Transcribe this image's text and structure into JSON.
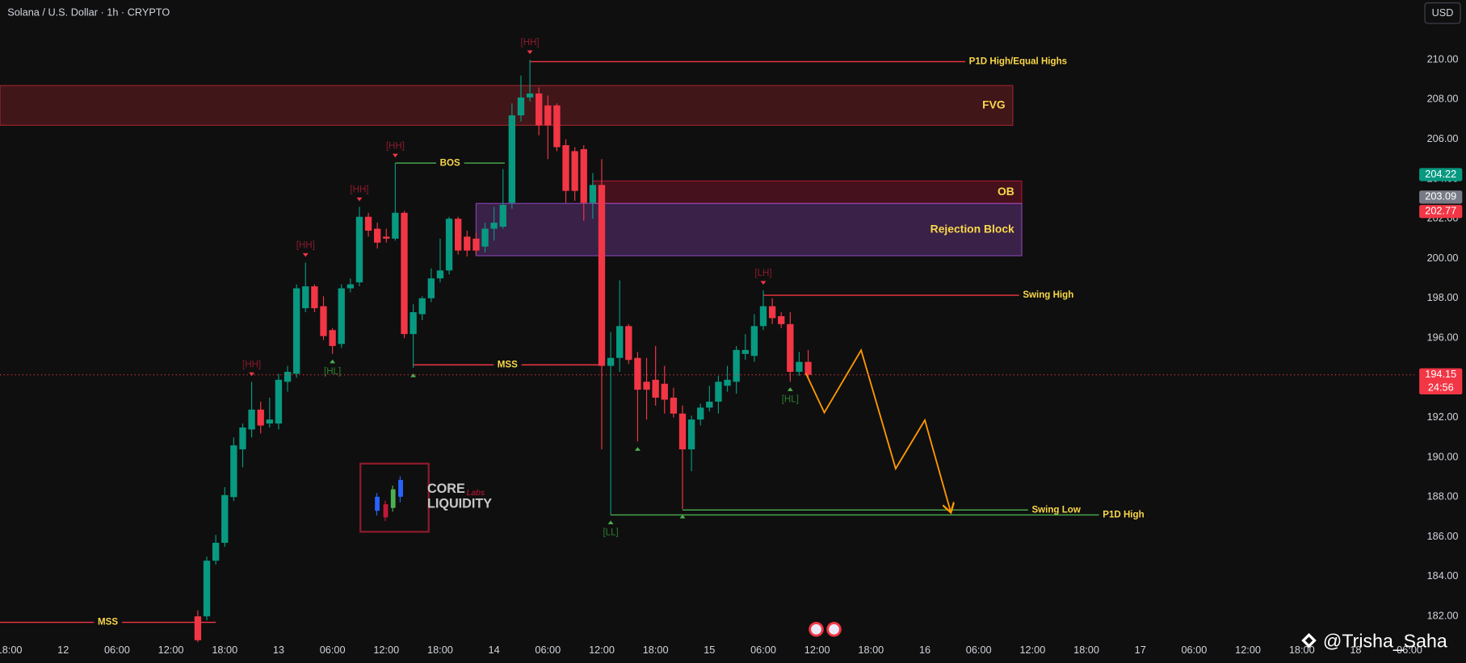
{
  "header": {
    "title": "Solana / U.S. Dollar · 1h · CRYPTO",
    "currency_button": "USD"
  },
  "watermark": {
    "brand_top": "CORE",
    "brand_script": "Labs",
    "brand_bottom": "LIQUIDITY",
    "credit": "@Trisha_Saha"
  },
  "chart_data": {
    "type": "candlestick",
    "up_color": "#089981",
    "down_color": "#f23645",
    "grid": false,
    "xlim": [
      -1.04,
      156.77
    ],
    "ylim": [
      180.69,
      213.0
    ],
    "xticks": [
      {
        "value": 0,
        "label": "18:00"
      },
      {
        "value": 6,
        "label": "12"
      },
      {
        "value": 12,
        "label": "06:00"
      },
      {
        "value": 18,
        "label": "12:00"
      },
      {
        "value": 24,
        "label": "18:00"
      },
      {
        "value": 30,
        "label": "13"
      },
      {
        "value": 36,
        "label": "06:00"
      },
      {
        "value": 42,
        "label": "12:00"
      },
      {
        "value": 48,
        "label": "18:00"
      },
      {
        "value": 54,
        "label": "14"
      },
      {
        "value": 60,
        "label": "06:00"
      },
      {
        "value": 66,
        "label": "12:00"
      },
      {
        "value": 72,
        "label": "18:00"
      },
      {
        "value": 78,
        "label": "15"
      },
      {
        "value": 84,
        "label": "06:00"
      },
      {
        "value": 90,
        "label": "12:00"
      },
      {
        "value": 96,
        "label": "18:00"
      },
      {
        "value": 102,
        "label": "16"
      },
      {
        "value": 108,
        "label": "06:00"
      },
      {
        "value": 114,
        "label": "12:00"
      },
      {
        "value": 120,
        "label": "18:00"
      },
      {
        "value": 126,
        "label": "17"
      },
      {
        "value": 132,
        "label": "06:00"
      },
      {
        "value": 138,
        "label": "12:00"
      },
      {
        "value": 144,
        "label": "18:00"
      },
      {
        "value": 150,
        "label": "18"
      },
      {
        "value": 156,
        "label": "06:00"
      }
    ],
    "yticks": [
      {
        "value": 182,
        "label": "182.00"
      },
      {
        "value": 184,
        "label": "184.00"
      },
      {
        "value": 186,
        "label": "186.00"
      },
      {
        "value": 188,
        "label": "188.00"
      },
      {
        "value": 190,
        "label": "190.00"
      },
      {
        "value": 192,
        "label": "192.00"
      },
      {
        "value": 194,
        "label": "194.00"
      },
      {
        "value": 196,
        "label": "196.00"
      },
      {
        "value": 198,
        "label": "198.00"
      },
      {
        "value": 200,
        "label": "200.00"
      },
      {
        "value": 202,
        "label": "202.00"
      },
      {
        "value": 204,
        "label": "204.00"
      },
      {
        "value": 206,
        "label": "206.00"
      },
      {
        "value": 208,
        "label": "208.00"
      },
      {
        "value": 210,
        "label": "210.00"
      }
    ],
    "x": [
      21,
      22,
      23,
      24,
      25,
      26,
      27,
      28,
      29,
      30,
      31,
      32,
      33,
      34,
      35,
      36,
      37,
      38,
      39,
      40,
      41,
      42,
      43,
      44,
      45,
      46,
      47,
      48,
      49,
      50,
      51,
      52,
      53,
      54,
      55,
      56,
      57,
      58,
      59,
      60,
      61,
      62,
      63,
      64,
      65,
      66,
      67,
      68,
      69,
      70,
      71,
      72,
      73,
      74,
      75,
      76,
      77,
      78,
      79,
      80,
      81,
      82,
      83,
      84,
      85,
      86,
      87,
      88,
      89
    ],
    "open": [
      182.0,
      182.0,
      184.8,
      185.7,
      188.0,
      190.4,
      191.4,
      192.4,
      191.7,
      191.7,
      193.8,
      194.2,
      197.5,
      198.6,
      197.6,
      196.4,
      195.7,
      198.5,
      198.8,
      202.1,
      201.5,
      201.1,
      201.0,
      202.3,
      196.2,
      197.2,
      198.0,
      199.0,
      199.4,
      202.0,
      201.1,
      201.0,
      200.6,
      201.5,
      201.6,
      202.8,
      207.2,
      208.1,
      208.3,
      207.7,
      207.7,
      205.7,
      205.4,
      205.5,
      202.8,
      203.7,
      194.6,
      195.0,
      196.6,
      195.0,
      193.8,
      193.9,
      193.7,
      193.0,
      192.2,
      190.4,
      191.9,
      192.5,
      192.8,
      193.6,
      193.8,
      195.2,
      195.1,
      196.6,
      197.6,
      197.1,
      196.7,
      194.3,
      194.8
    ],
    "high": [
      182.3,
      185.0,
      186.1,
      188.5,
      191.0,
      191.7,
      193.8,
      192.8,
      193.0,
      194.2,
      194.6,
      198.7,
      199.8,
      198.7,
      198.1,
      196.5,
      198.7,
      199.0,
      202.6,
      202.3,
      201.8,
      201.5,
      204.8,
      202.4,
      197.7,
      198.1,
      199.5,
      201.0,
      202.1,
      202.1,
      201.4,
      201.3,
      201.8,
      202.6,
      204.5,
      207.8,
      209.2,
      210.0,
      208.6,
      208.2,
      207.8,
      206.0,
      205.6,
      205.7,
      204.3,
      205.0,
      196.3,
      198.9,
      196.7,
      195.3,
      195.0,
      195.6,
      194.6,
      193.5,
      192.6,
      192.1,
      192.7,
      193.6,
      194.1,
      194.6,
      195.6,
      196.2,
      197.2,
      198.4,
      198.0,
      197.3,
      197.3,
      195.3,
      195.4
    ],
    "low": [
      180.7,
      181.8,
      184.6,
      185.5,
      187.8,
      189.5,
      191.0,
      191.2,
      191.5,
      191.4,
      193.3,
      194.0,
      197.3,
      197.3,
      195.9,
      195.2,
      195.5,
      198.3,
      198.6,
      201.1,
      200.5,
      200.8,
      200.9,
      196.0,
      194.5,
      196.9,
      197.8,
      198.8,
      199.2,
      200.2,
      200.1,
      200.2,
      200.3,
      200.9,
      201.5,
      202.5,
      206.9,
      207.9,
      206.2,
      205.0,
      205.4,
      202.8,
      202.9,
      201.9,
      202.0,
      190.4,
      187.1,
      194.3,
      194.7,
      190.8,
      191.9,
      192.6,
      192.2,
      192.0,
      187.4,
      189.3,
      191.6,
      192.3,
      192.2,
      193.3,
      193.2,
      194.9,
      194.8,
      196.4,
      196.7,
      196.5,
      193.8,
      194.1,
      194.0
    ],
    "close": [
      180.8,
      184.8,
      185.7,
      188.1,
      190.6,
      191.5,
      192.4,
      191.6,
      191.9,
      193.9,
      194.3,
      198.5,
      198.6,
      197.5,
      196.1,
      195.6,
      198.5,
      198.7,
      202.1,
      201.4,
      200.8,
      201.0,
      202.3,
      196.2,
      197.3,
      198.0,
      199.0,
      199.4,
      202.0,
      200.4,
      200.4,
      200.4,
      201.5,
      201.8,
      202.7,
      207.2,
      208.1,
      208.3,
      206.7,
      206.7,
      205.6,
      203.4,
      203.4,
      202.8,
      203.7,
      194.6,
      195.0,
      196.6,
      194.9,
      193.4,
      193.4,
      193.0,
      192.9,
      192.2,
      190.4,
      191.9,
      192.5,
      192.8,
      193.8,
      193.9,
      195.4,
      195.4,
      196.6,
      197.6,
      197.0,
      196.7,
      194.3,
      194.8,
      194.15
    ],
    "zones": [
      {
        "label": "FVG",
        "top": 208.7,
        "bottom": 206.7,
        "t": [
          -1.04,
          111.8
        ],
        "color": "#b22833"
      },
      {
        "label": "OB",
        "top": 203.9,
        "bottom": 202.77,
        "t": [
          65,
          112.8
        ],
        "color": "#c2183a"
      },
      {
        "label": "Rejection Block",
        "top": 202.77,
        "bottom": 200.14,
        "t": [
          52,
          112.8
        ],
        "color": "#9c4dcc"
      }
    ],
    "levels": [
      {
        "label": "P1D High/Equal Highs",
        "price": 209.9,
        "t": [
          58,
          106.5
        ],
        "color": "#f23645",
        "label_pos": "end"
      },
      {
        "label": "BOS",
        "price": 204.8,
        "t": [
          43,
          55.2
        ],
        "color": "#4caf50",
        "label_pos": "center"
      },
      {
        "label": "MSS",
        "price": 194.65,
        "t": [
          45,
          66
        ],
        "color": "#f23645",
        "label_pos": "center"
      },
      {
        "label": "MSS",
        "price": 181.7,
        "t": [
          -1.04,
          23
        ],
        "color": "#f23645",
        "label_pos": "center"
      },
      {
        "label": "Swing High",
        "price": 198.15,
        "t": [
          84,
          112.5
        ],
        "color": "#f23645",
        "label_pos": "end"
      },
      {
        "label": "Swing Low",
        "price": 187.35,
        "t": [
          75,
          113.5
        ],
        "color": "#4caf50",
        "label_pos": "end"
      },
      {
        "label": "P1D High",
        "price": 187.1,
        "t": [
          67,
          121.4
        ],
        "color": "#4caf50",
        "label_pos": "end"
      }
    ],
    "pivots": [
      {
        "t": 27,
        "price": 193.8,
        "side": "high",
        "label": "[HH]"
      },
      {
        "t": 33,
        "price": 199.8,
        "side": "high",
        "label": "[HH]"
      },
      {
        "t": 39,
        "price": 202.6,
        "side": "high",
        "label": "[HH]"
      },
      {
        "t": 43,
        "price": 204.8,
        "side": "high",
        "label": "[HH]"
      },
      {
        "t": 58,
        "price": 210.0,
        "side": "high",
        "label": "[HH]"
      },
      {
        "t": 36,
        "price": 195.2,
        "side": "low",
        "label": "[HL]"
      },
      {
        "t": 45,
        "price": 194.5,
        "side": "low"
      },
      {
        "t": 67,
        "price": 187.1,
        "side": "low",
        "label": "[LL]"
      },
      {
        "t": 70,
        "price": 190.8,
        "side": "low"
      },
      {
        "t": 75,
        "price": 187.4,
        "side": "low"
      },
      {
        "t": 84,
        "price": 198.4,
        "side": "high",
        "label": "[LH]"
      },
      {
        "t": 87,
        "price": 193.8,
        "side": "low",
        "label": "[HL]"
      }
    ],
    "projection": {
      "color": "#ff9800",
      "t": [
        88.75,
        90.8,
        94.9,
        98.75,
        102.0,
        104.9
      ],
      "price": [
        194.22,
        192.25,
        195.39,
        189.43,
        191.87,
        187.22
      ]
    },
    "price_tags": [
      {
        "value": 204.22,
        "color": "#089981"
      },
      {
        "value": 203.09,
        "color": "#787b86"
      },
      {
        "value": 202.77,
        "color": "#f23645"
      },
      {
        "value": 194.15,
        "color": "#f23645",
        "countdown": "24:56"
      }
    ]
  }
}
